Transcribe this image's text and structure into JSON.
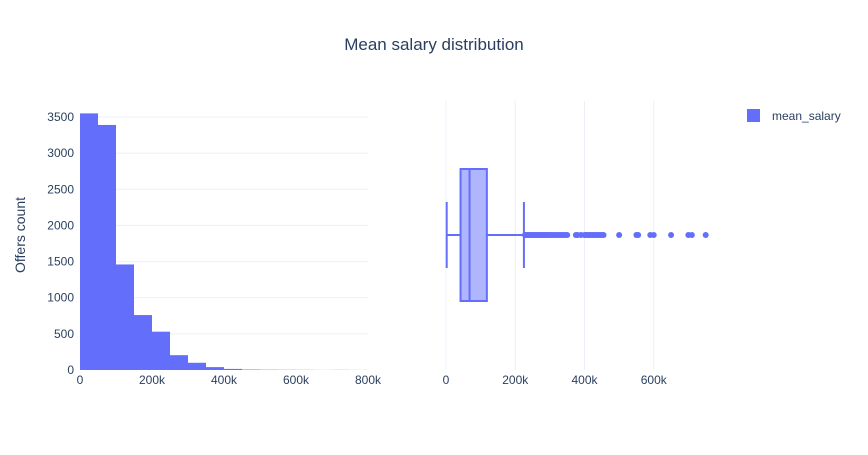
{
  "chart_data": {
    "title": "Mean salary distribution",
    "legend": {
      "position": "top-right",
      "entries": [
        "mean_salary"
      ]
    },
    "colors": {
      "series": "#636efa",
      "box_fill": "#b0b6fd",
      "grid": "#ebf0f8",
      "text": "#2a3f5f"
    },
    "histogram": {
      "type": "bar",
      "ylabel": "Offers count",
      "xlim": [
        0,
        800000
      ],
      "ylim": [
        0,
        3500
      ],
      "xticks": [
        0,
        200000,
        400000,
        600000,
        800000
      ],
      "xtick_labels": [
        "0",
        "200k",
        "400k",
        "600k",
        "800k"
      ],
      "yticks": [
        0,
        500,
        1000,
        1500,
        2000,
        2500,
        3000,
        3500
      ],
      "yticks_labels": [
        "0",
        "500",
        "1000",
        "1500",
        "2000",
        "2500",
        "3000",
        "3500"
      ],
      "bin_width": 50000,
      "bin_starts": [
        0,
        50000,
        100000,
        150000,
        200000,
        250000,
        300000,
        350000,
        400000,
        450000,
        500000,
        550000,
        600000,
        650000,
        700000,
        750000
      ],
      "values": [
        3550,
        3390,
        1460,
        760,
        530,
        205,
        100,
        40,
        15,
        6,
        4,
        3,
        2,
        1,
        2,
        1
      ]
    },
    "box": {
      "type": "box",
      "series_name": "mean_salary",
      "xlim": [
        0,
        800000
      ],
      "xticks": [
        0,
        200000,
        400000,
        600000
      ],
      "xtick_labels": [
        "0",
        "200k",
        "400k",
        "600k"
      ],
      "min": 2000,
      "q1": 42000,
      "median": 68000,
      "q3": 118000,
      "upper_fence": 225000,
      "outliers": [
        228000,
        232000,
        236000,
        240000,
        244000,
        248000,
        252000,
        256000,
        260000,
        264000,
        268000,
        272000,
        276000,
        280000,
        284000,
        288000,
        292000,
        296000,
        300000,
        305000,
        310000,
        315000,
        320000,
        325000,
        330000,
        335000,
        340000,
        345000,
        350000,
        375000,
        380000,
        390000,
        400000,
        405000,
        410000,
        415000,
        420000,
        425000,
        430000,
        435000,
        440000,
        445000,
        450000,
        455000,
        500000,
        550000,
        555000,
        590000,
        600000,
        650000,
        700000,
        710000,
        750000
      ]
    }
  }
}
